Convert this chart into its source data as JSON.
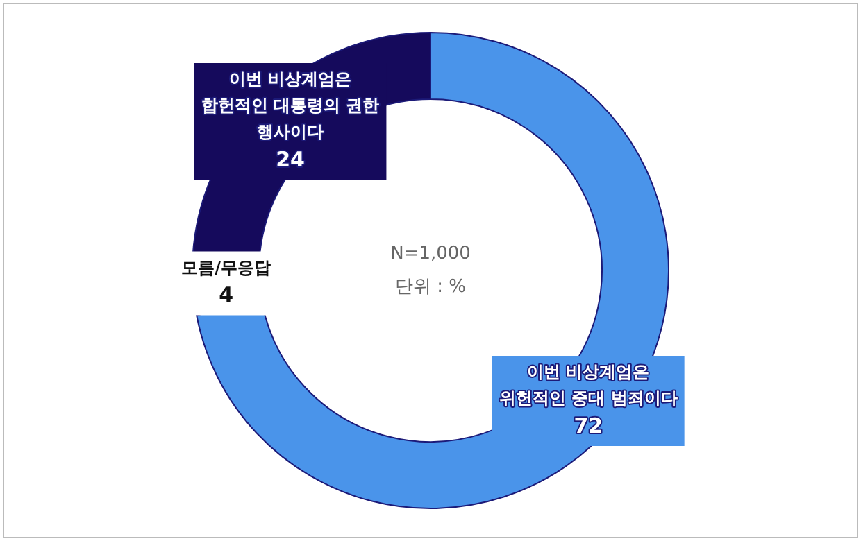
{
  "chart_data": {
    "type": "donut",
    "categories": [
      "이번 비상계엄은 위헌적인 중대 범죄이다",
      "모름/무응답",
      "이번 비상계엄은 합헌적인 대통령의 권한 행사이다"
    ],
    "values": [
      72,
      4,
      24
    ],
    "colors": [
      "#4a94ea",
      "#ffffff",
      "#150a5c"
    ],
    "data_labels": true,
    "legend": false,
    "annotations": [
      "N=1,000",
      "단위 : %"
    ]
  }
}
